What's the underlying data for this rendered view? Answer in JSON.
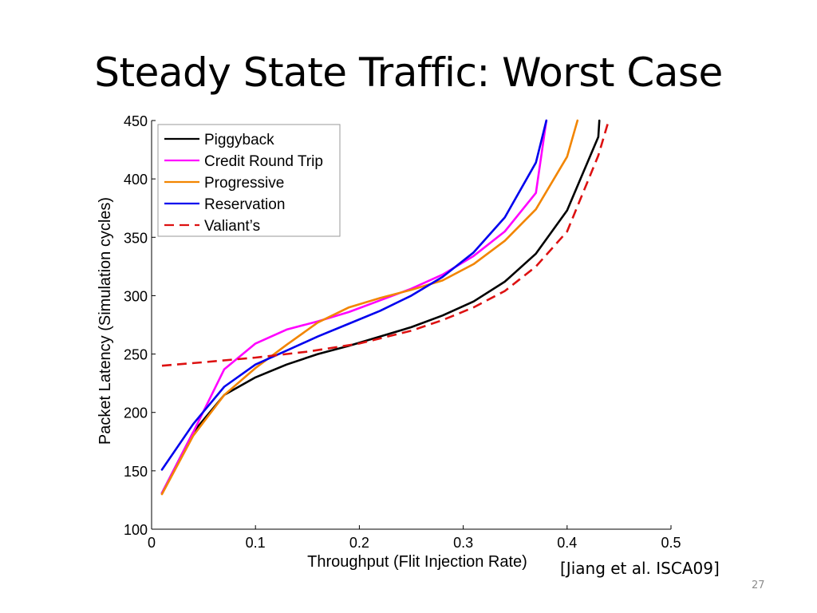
{
  "slide": {
    "title": "Steady State Traffic: Worst Case",
    "citation": "[Jiang et al. ISCA09]",
    "page_number": "27"
  },
  "chart_data": {
    "type": "line",
    "title": "",
    "xlabel": "Throughput  (Flit Injection Rate)",
    "ylabel": "Packet Latency (Simulation cycles)",
    "xlim": [
      0,
      0.5
    ],
    "ylim": [
      100,
      450
    ],
    "xticks": [
      "0",
      "0.1",
      "0.2",
      "0.3",
      "0.4",
      "0.5"
    ],
    "yticks": [
      "100",
      "150",
      "200",
      "250",
      "300",
      "350",
      "400",
      "450"
    ],
    "grid": false,
    "legend_position": "top-left",
    "series": [
      {
        "name": "Piggyback",
        "color": "#000000",
        "dash": "solid",
        "x": [
          0.01,
          0.04,
          0.07,
          0.1,
          0.13,
          0.16,
          0.19,
          0.22,
          0.25,
          0.28,
          0.31,
          0.34,
          0.37,
          0.4,
          0.43,
          0.431
        ],
        "y": [
          131,
          183,
          215,
          230,
          241,
          250,
          257,
          265,
          273,
          283,
          295,
          312,
          336,
          373,
          436,
          450
        ]
      },
      {
        "name": "Credit Round Trip",
        "color": "#ff00ff",
        "dash": "solid",
        "x": [
          0.01,
          0.04,
          0.07,
          0.1,
          0.13,
          0.16,
          0.19,
          0.22,
          0.25,
          0.28,
          0.31,
          0.34,
          0.37,
          0.38
        ],
        "y": [
          131,
          183,
          237,
          259,
          271,
          278,
          286,
          296,
          306,
          318,
          334,
          355,
          388,
          450
        ]
      },
      {
        "name": "Progressive",
        "color": "#f28500",
        "dash": "solid",
        "x": [
          0.01,
          0.04,
          0.07,
          0.1,
          0.13,
          0.16,
          0.19,
          0.22,
          0.25,
          0.28,
          0.31,
          0.34,
          0.37,
          0.4,
          0.41
        ],
        "y": [
          130,
          180,
          215,
          238,
          258,
          277,
          290,
          298,
          305,
          313,
          327,
          347,
          374,
          419,
          450
        ]
      },
      {
        "name": "Reservation",
        "color": "#0000ee",
        "dash": "solid",
        "x": [
          0.01,
          0.04,
          0.07,
          0.1,
          0.13,
          0.16,
          0.19,
          0.22,
          0.25,
          0.28,
          0.31,
          0.34,
          0.37,
          0.38
        ],
        "y": [
          151,
          190,
          222,
          241,
          253,
          265,
          276,
          287,
          300,
          316,
          337,
          367,
          414,
          450
        ]
      },
      {
        "name": "Valiant’s",
        "color": "#dd1111",
        "dash": "dashed",
        "x": [
          0.01,
          0.05,
          0.1,
          0.15,
          0.2,
          0.25,
          0.28,
          0.31,
          0.34,
          0.37,
          0.4,
          0.43,
          0.44
        ],
        "y": [
          240,
          243,
          247,
          252,
          259,
          270,
          279,
          290,
          304,
          325,
          355,
          420,
          450
        ]
      }
    ]
  }
}
